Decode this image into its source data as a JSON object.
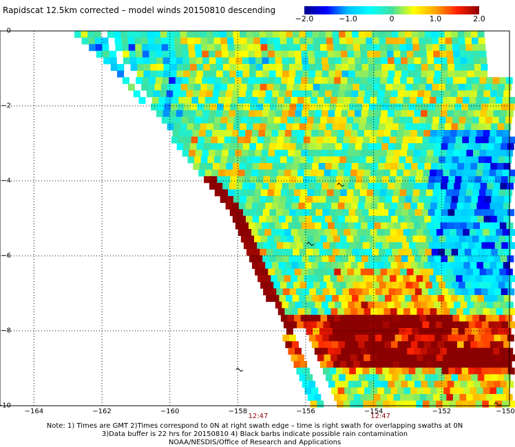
{
  "title": "Rapidscat 12.5km corrected – model winds 20150810 descending",
  "colorbar": {
    "ticks": [
      "−2.0",
      "−1.0",
      "0",
      "1.0",
      "2.0"
    ],
    "tick_values": [
      -2.0,
      -1.0,
      0,
      1.0,
      2.0
    ],
    "range": [
      -2.0,
      2.0
    ],
    "colors": [
      "#00008b",
      "#0000ff",
      "#00bfff",
      "#00ffff",
      "#40e0a0",
      "#ffff00",
      "#ffa500",
      "#ff2000",
      "#8b0000"
    ]
  },
  "map": {
    "lon_range": [
      -165,
      -150
    ],
    "lat_range": [
      -10,
      0
    ],
    "x_ticks": [
      "−164",
      "−162",
      "−160",
      "−158",
      "−156",
      "−154",
      "−152",
      "−150"
    ],
    "x_tick_values": [
      -164,
      -162,
      -160,
      -158,
      -156,
      -154,
      -152,
      -150
    ],
    "y_ticks": [
      "0",
      "−2",
      "−4",
      "−6",
      "−8",
      "−10"
    ],
    "y_tick_values": [
      0,
      -2,
      -4,
      -6,
      -8,
      -10
    ],
    "grid": "dotted",
    "swath_times": [
      "12:47",
      "12:47"
    ],
    "swath_time_lons": [
      -157.4,
      -153.8
    ]
  },
  "notes": [
    "Note: 1) Times are GMT 2)Times correspond to 0N at right swath edge – time is right swath for overlapping swaths at 0N",
    "3)Data buffer is 22 hrs for 20150810 4) Black barbs indicate possible rain contamination",
    "NOAA/NESDIS/Office of Research and Applications"
  ]
}
